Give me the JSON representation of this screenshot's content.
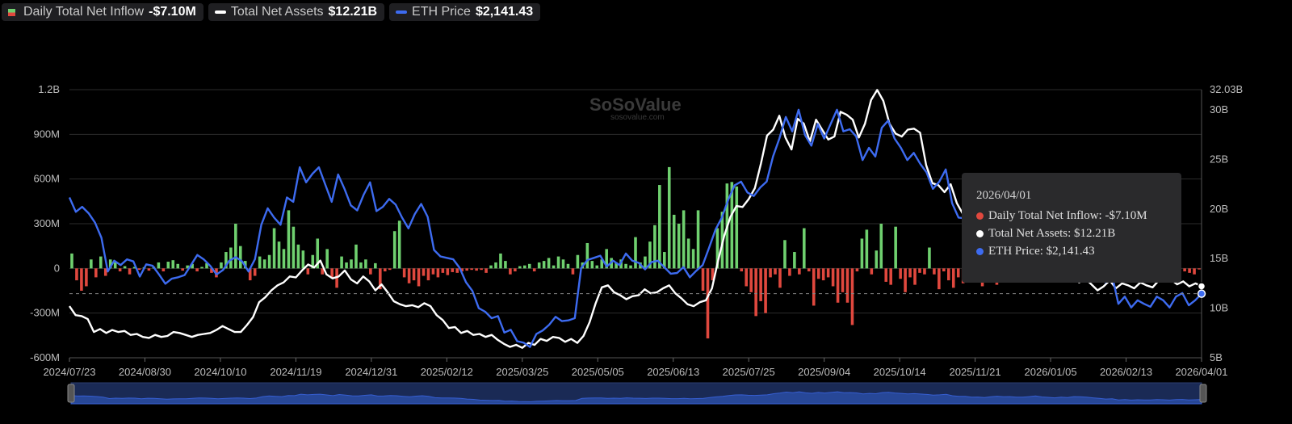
{
  "legend": [
    {
      "label": "Daily Total Net Inflow",
      "value": "-$7.10M",
      "swatch": "bar"
    },
    {
      "label": "Total Net Assets",
      "value": "$12.21B",
      "swatch": "line",
      "color": "#ffffff"
    },
    {
      "label": "ETH Price",
      "value": "$2,141.43",
      "swatch": "line",
      "color": "#3d6bf0"
    }
  ],
  "watermark": {
    "brand": "SoSoValue",
    "site": "sosovalue.com"
  },
  "tooltip": {
    "date": "2026/04/01",
    "rows": [
      {
        "text": "Daily Total Net Inflow: -$7.10M",
        "color": "#e0483e"
      },
      {
        "text": "Total Net Assets: $12.21B",
        "color": "#ffffff"
      },
      {
        "text": "ETH Price: $2,141.43",
        "color": "#3d6bf0"
      }
    ]
  },
  "colors": {
    "inflow_positive": "#6fd06f",
    "inflow_negative": "#e0483e",
    "assets": "#ffffff",
    "price": "#3d6bf0",
    "grid": "#2b2b2b"
  },
  "chart_data": {
    "type": "bar+line",
    "x_ticks": [
      "2024/07/23",
      "2024/08/30",
      "2024/10/10",
      "2024/11/19",
      "2024/12/31",
      "2025/02/12",
      "2025/03/25",
      "2025/05/05",
      "2025/06/13",
      "2025/07/25",
      "2025/09/04",
      "2025/10/14",
      "2025/11/21",
      "2026/01/05",
      "2026/02/13",
      "2026/04/01"
    ],
    "y_left": {
      "ticks": [
        "1.2B",
        "900M",
        "600M",
        "300M",
        "0",
        "-300M",
        "-600M"
      ],
      "range": [
        -600000000,
        1200000000
      ]
    },
    "y_right": {
      "ticks": [
        "32.03B",
        "30B",
        "25B",
        "20B",
        "15B",
        "10B",
        "5B"
      ],
      "range": [
        5,
        32.03
      ],
      "unit": "B"
    },
    "grid": true,
    "legend_position": "top-left",
    "series": [
      {
        "name": "Daily Total Net Inflow",
        "kind": "bar",
        "unit": "M",
        "axis": "left",
        "values": [
          100,
          -80,
          -150,
          -120,
          60,
          -60,
          80,
          -50,
          60,
          40,
          -20,
          15,
          -40,
          10,
          -10,
          8,
          -15,
          12,
          40,
          -20,
          45,
          55,
          30,
          -15,
          20,
          30,
          -20,
          10,
          35,
          -30,
          -60,
          40,
          110,
          140,
          300,
          150,
          50,
          -80,
          -50,
          80,
          60,
          90,
          270,
          180,
          130,
          390,
          280,
          160,
          120,
          -40,
          90,
          200,
          -40,
          130,
          -60,
          -130,
          80,
          40,
          60,
          160,
          40,
          60,
          -40,
          35,
          -140,
          -20,
          -10,
          250,
          320,
          -60,
          -100,
          -80,
          -120,
          -50,
          -80,
          -40,
          -60,
          -30,
          -45,
          -25,
          -30,
          -20,
          -15,
          -10,
          -15,
          -10,
          -30,
          20,
          40,
          100,
          50,
          -40,
          -20,
          15,
          20,
          30,
          -20,
          40,
          50,
          70,
          20,
          80,
          60,
          30,
          -40,
          90,
          40,
          170,
          50,
          20,
          60,
          130,
          70,
          40,
          60,
          30,
          20,
          210,
          40,
          80,
          180,
          290,
          560,
          110,
          680,
          360,
          300,
          390,
          200,
          130,
          390,
          -150,
          -470,
          -80,
          270,
          380,
          570,
          580,
          550,
          -20,
          -120,
          -160,
          -320,
          -220,
          -300,
          -60,
          -40,
          -130,
          190,
          -50,
          110,
          -40,
          270,
          -20,
          -250,
          -70,
          -80,
          -60,
          -120,
          -230,
          -160,
          -230,
          -380,
          -20,
          200,
          260,
          -40,
          120,
          300,
          -90,
          -110,
          280,
          -70,
          -160,
          -60,
          -110,
          -30,
          -40,
          140,
          -40,
          -140,
          -20,
          -80,
          -130,
          -60,
          -100,
          -80,
          -50,
          -30,
          -120,
          -40,
          -70,
          -110,
          -90,
          -60,
          -80,
          -30,
          -60,
          -40,
          -20,
          -30,
          -50,
          -40,
          -60,
          -80,
          -20,
          -30,
          -40,
          -20,
          -50,
          -30,
          -40,
          -20,
          -60,
          -30,
          -40,
          -20,
          -60,
          -20,
          -30,
          -50,
          -20,
          -40,
          -30,
          -10,
          -20,
          -30,
          -60,
          -20,
          -40,
          -10,
          -20,
          -30,
          -40,
          -7.1
        ]
      },
      {
        "name": "Total Net Assets",
        "kind": "line",
        "unit": "B",
        "axis": "right",
        "values": [
          10.2,
          9.3,
          9.2,
          8.9,
          7.6,
          7.9,
          7.5,
          7.8,
          7.6,
          7.7,
          7.3,
          7.4,
          7.1,
          7.0,
          7.3,
          7.1,
          7.2,
          7.6,
          7.5,
          7.3,
          7.1,
          7.3,
          7.4,
          7.5,
          7.8,
          8.2,
          7.9,
          7.6,
          7.6,
          8.3,
          9.1,
          10.6,
          11.1,
          11.8,
          12.3,
          12.6,
          13.2,
          13.1,
          13.8,
          14.4,
          14.1,
          14.8,
          13.4,
          13.0,
          13.2,
          13.8,
          12.9,
          12.5,
          13.2,
          12.7,
          11.8,
          12.4,
          11.6,
          10.7,
          10.4,
          10.2,
          10.3,
          10.1,
          10.5,
          10.2,
          9.3,
          8.8,
          8.0,
          8.1,
          7.5,
          7.7,
          7.3,
          7.4,
          7.1,
          7.3,
          6.8,
          6.4,
          6.1,
          6.3,
          6.0,
          6.5,
          6.3,
          6.9,
          6.7,
          7.1,
          7.0,
          6.6,
          6.9,
          6.5,
          7.2,
          8.6,
          10.5,
          12.1,
          12.3,
          11.6,
          11.3,
          10.9,
          11.2,
          11.3,
          11.9,
          11.5,
          11.6,
          12.0,
          12.3,
          11.5,
          11.0,
          10.4,
          10.2,
          10.6,
          10.8,
          12.0,
          14.8,
          17.3,
          19.2,
          20.3,
          20.2,
          21.0,
          22.1,
          24.6,
          27.4,
          28.0,
          29.4,
          27.2,
          26.0,
          29.1,
          28.6,
          26.8,
          29.0,
          28.0,
          27.0,
          27.3,
          29.8,
          29.5,
          29.0,
          27.2,
          28.6,
          31.0,
          32.0,
          30.9,
          28.6,
          27.6,
          27.3,
          28.0,
          28.1,
          27.7,
          24.4,
          22.6,
          22.4,
          21.7,
          22.5,
          20.6,
          19.5,
          19.3,
          18.7,
          18.5,
          17.7,
          17.3,
          16.5,
          16.1,
          16.4,
          15.7,
          15.8,
          15.4,
          14.9,
          14.3,
          14.0,
          14.6,
          13.8,
          13.0,
          13.1,
          12.6,
          13.0,
          12.4,
          11.8,
          12.2,
          12.8,
          12.0,
          12.5,
          12.3,
          12.0,
          12.6,
          12.3,
          12.1,
          12.8,
          13.5,
          12.9,
          12.4,
          12.7,
          12.2,
          12.5,
          12.21
        ]
      },
      {
        "name": "ETH Price",
        "kind": "line",
        "unit": "$",
        "axis": "right",
        "values": [
          3480,
          3280,
          3350,
          3260,
          3130,
          2920,
          2450,
          2600,
          2540,
          2620,
          2590,
          2380,
          2550,
          2530,
          2410,
          2280,
          2350,
          2370,
          2400,
          2540,
          2680,
          2620,
          2530,
          2410,
          2470,
          2600,
          2650,
          2590,
          2450,
          2620,
          3100,
          3330,
          3200,
          3100,
          3480,
          3420,
          3900,
          3690,
          3810,
          3900,
          3660,
          3420,
          3800,
          3600,
          3370,
          3300,
          3520,
          3690,
          3290,
          3350,
          3460,
          3380,
          3200,
          3050,
          3250,
          3390,
          3210,
          2750,
          2660,
          2640,
          2620,
          2500,
          2300,
          2180,
          1940,
          1890,
          1800,
          1830,
          1600,
          1640,
          1480,
          1460,
          1400,
          1580,
          1630,
          1710,
          1820,
          1760,
          1770,
          1800,
          2500,
          2610,
          2640,
          2670,
          2520,
          2600,
          2540,
          2700,
          2600,
          2570,
          2480,
          2580,
          2600,
          2510,
          2420,
          2430,
          2510,
          2370,
          2460,
          2540,
          2780,
          3030,
          3200,
          3450,
          3650,
          3700,
          3550,
          3500,
          3620,
          3700,
          4050,
          4300,
          4600,
          4400,
          4700,
          4350,
          4200,
          4500,
          4300,
          4500,
          4700,
          4400,
          4430,
          4330,
          4000,
          4170,
          4050,
          4450,
          4550,
          4300,
          4170,
          4000,
          4100,
          3950,
          3830,
          3600,
          3700,
          3870,
          3400,
          3200,
          3190,
          2900,
          2960,
          2800,
          3050,
          3240,
          3080,
          3090,
          2950,
          2900,
          3100,
          3300,
          3000,
          2850,
          2700,
          2950,
          2800,
          3100,
          3050,
          2900,
          2700,
          2500,
          2300,
          2400,
          2000,
          2100,
          1950,
          2050,
          2000,
          1960,
          2100,
          2050,
          1950,
          2100,
          2150,
          1980,
          2050,
          2141.43
        ]
      }
    ]
  }
}
